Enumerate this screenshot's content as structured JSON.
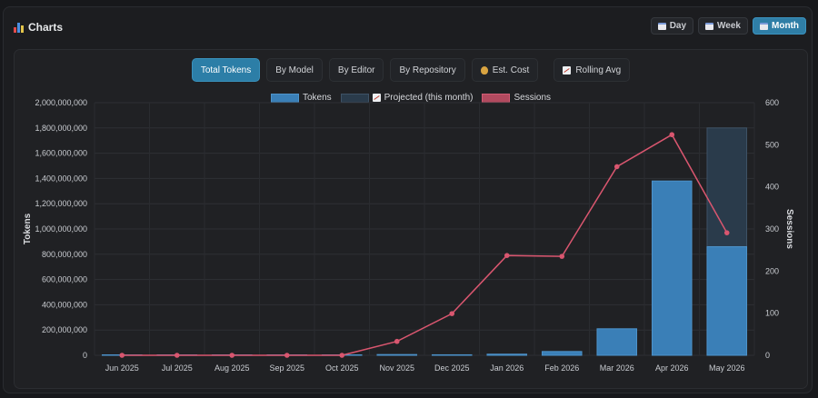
{
  "header": {
    "title": "Charts",
    "period_buttons": [
      {
        "label": "Day",
        "active": false
      },
      {
        "label": "Week",
        "active": false
      },
      {
        "label": "Month",
        "active": true
      }
    ]
  },
  "tabs": [
    {
      "label": "Total Tokens",
      "active": true,
      "icon": ""
    },
    {
      "label": "By Model",
      "active": false,
      "icon": ""
    },
    {
      "label": "By Editor",
      "active": false,
      "icon": ""
    },
    {
      "label": "By Repository",
      "active": false,
      "icon": ""
    },
    {
      "label": "Est. Cost",
      "active": false,
      "icon": "money-bag-icon"
    },
    {
      "label": "Rolling Avg",
      "active": false,
      "icon": "trend-chart-icon"
    }
  ],
  "colors": {
    "accent": "#2c7ea7",
    "tokens_bar": "#3a7fb7",
    "projected_bar": "#2a3b4b",
    "sessions_line": "#d9566f"
  },
  "chart_data": {
    "type": "bar",
    "categories": [
      "Jun 2025",
      "Jul 2025",
      "Aug 2025",
      "Sep 2025",
      "Oct 2025",
      "Nov 2025",
      "Dec 2025",
      "Jan 2026",
      "Feb 2026",
      "Mar 2026",
      "Apr 2026",
      "May 2026"
    ],
    "series": [
      {
        "name": "Tokens",
        "type": "bar",
        "axis": "left",
        "values": [
          0,
          0,
          0,
          0,
          0,
          6000000,
          4000000,
          9000000,
          30000000,
          210000000,
          1380000000,
          860000000
        ]
      },
      {
        "name": "Projected (this month)",
        "type": "bar",
        "axis": "left",
        "values": [
          null,
          null,
          null,
          null,
          null,
          null,
          null,
          null,
          null,
          null,
          null,
          1800000000
        ]
      },
      {
        "name": "Sessions",
        "type": "line",
        "axis": "right",
        "values": [
          0,
          0,
          0,
          0,
          0,
          33,
          99,
          237,
          235,
          448,
          524,
          291
        ]
      }
    ],
    "ylabel": "Tokens",
    "y2label": "Sessions",
    "ylim": [
      0,
      2000000000
    ],
    "y2lim": [
      0,
      600
    ],
    "yticks": [
      "0",
      "200,000,000",
      "400,000,000",
      "600,000,000",
      "800,000,000",
      "1,000,000,000",
      "1,200,000,000",
      "1,400,000,000",
      "1,600,000,000",
      "1,800,000,000",
      "2,000,000,000"
    ],
    "y2ticks": [
      "0",
      "100",
      "200",
      "300",
      "400",
      "500",
      "600"
    ],
    "grid": true,
    "legend": "top-center"
  }
}
